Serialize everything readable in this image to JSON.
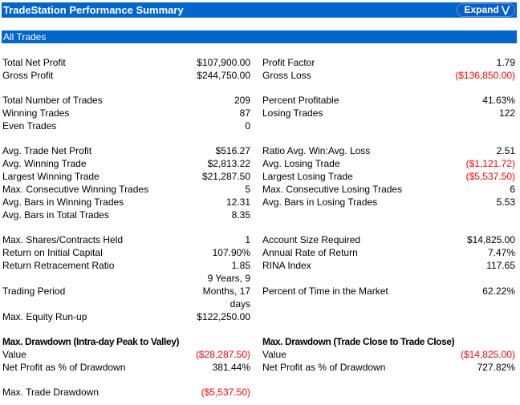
{
  "title": "TradeStation Performance Summary",
  "expand_label": "Expand",
  "section": "All Trades",
  "colors": {
    "header_bg": "#0066cc",
    "negative": "#ff0000"
  },
  "groups": [
    [
      {
        "l": "Total Net Profit",
        "v": "$107,900.00",
        "r": "Profit Factor",
        "rv": "1.79"
      },
      {
        "l": "Gross Profit",
        "v": "$244,750.00",
        "r": "Gross Loss",
        "rv": "($136,850.00)",
        "rneg": true
      }
    ],
    [
      {
        "l": "Total Number of Trades",
        "v": "209",
        "r": "Percent Profitable",
        "rv": "41.63%"
      },
      {
        "l": "Winning Trades",
        "v": "87",
        "r": "Losing Trades",
        "rv": "122"
      },
      {
        "l": "Even Trades",
        "v": "0"
      }
    ],
    [
      {
        "l": "Avg. Trade Net Profit",
        "v": "$516.27",
        "r": "Ratio Avg. Win:Avg. Loss",
        "rv": "2.51"
      },
      {
        "l": "Avg. Winning Trade",
        "v": "$2,813.22",
        "r": "Avg. Losing Trade",
        "rv": "($1,121.72)",
        "rneg": true
      },
      {
        "l": "Largest Winning Trade",
        "v": "$21,287.50",
        "r": "Largest Losing Trade",
        "rv": "($5,537.50)",
        "rneg": true
      },
      {
        "l": "Max. Consecutive Winning Trades",
        "v": "5",
        "r": "Max. Consecutive Losing Trades",
        "rv": "6"
      },
      {
        "l": "Avg. Bars in Winning Trades",
        "v": "12.31",
        "r": "Avg. Bars in Losing Trades",
        "rv": "5.53"
      },
      {
        "l": "Avg. Bars in Total Trades",
        "v": "8.35"
      }
    ],
    [
      {
        "l": "Max. Shares/Contracts Held",
        "v": "1",
        "r": "Account Size Required",
        "rv": "$14,825.00"
      },
      {
        "l": "Return on Initial Capital",
        "v": "107.90%",
        "r": "Annual Rate of Return",
        "rv": "7.47%"
      },
      {
        "l": "Return Retracement Ratio",
        "v": "1.85",
        "r": "RINA Index",
        "rv": "117.65"
      },
      {
        "v": "9 Years, 9"
      },
      {
        "l": "Trading Period",
        "v": "Months, 17",
        "r": "Percent of Time in the Market",
        "rv": "62.22%"
      },
      {
        "v": "days"
      },
      {
        "l": "Max. Equity Run-up",
        "v": "$122,250.00"
      }
    ],
    [
      {
        "l": "Max. Drawdown (Intra-day Peak to Valley)",
        "r": "Max. Drawdown (Trade Close to Trade Close)",
        "hd": true
      },
      {
        "l": "Value",
        "v": "($28,287.50)",
        "neg": true,
        "r": "Value",
        "rv": "($14,825.00)",
        "rneg": true
      },
      {
        "l": "Net Profit as % of Drawdown",
        "v": "381.44%",
        "r": "Net Profit as % of Drawdown",
        "rv": "727.82%"
      }
    ],
    [
      {
        "l": "Max. Trade Drawdown",
        "v": "($5,537.50)",
        "neg": true
      }
    ]
  ]
}
